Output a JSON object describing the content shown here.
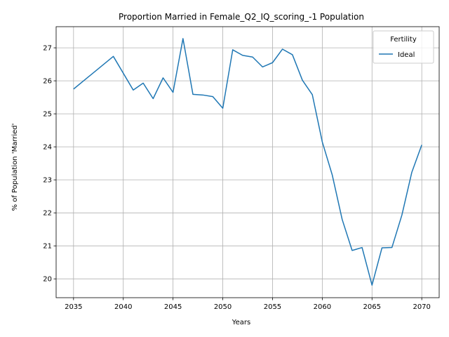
{
  "chart_data": {
    "type": "line",
    "title": "Proportion Married in Female_Q2_IQ_scoring_-1 Population",
    "xlabel": "Years",
    "ylabel": "% of Population 'Married'",
    "xlim": [
      2033.25,
      2071.75
    ],
    "ylim": [
      19.43,
      27.64
    ],
    "xticks": [
      2035,
      2040,
      2045,
      2050,
      2055,
      2060,
      2065,
      2070
    ],
    "yticks": [
      20,
      21,
      22,
      23,
      24,
      25,
      26,
      27
    ],
    "grid": true,
    "legend": {
      "title": "Fertility",
      "placement": "top-right"
    },
    "series": [
      {
        "name": "Ideal",
        "color": "#1f77b4",
        "x": [
          2035,
          2039,
          2041,
          2042,
          2043,
          2044,
          2045,
          2046,
          2047,
          2048,
          2049,
          2050,
          2051,
          2052,
          2053,
          2054,
          2055,
          2056,
          2057,
          2058,
          2059,
          2060,
          2061,
          2062,
          2063,
          2064,
          2065,
          2066,
          2067,
          2068,
          2069,
          2070
        ],
        "values": [
          25.75,
          26.74,
          25.72,
          25.93,
          25.46,
          26.09,
          25.65,
          27.28,
          25.59,
          25.57,
          25.52,
          25.17,
          26.94,
          26.77,
          26.72,
          26.42,
          26.55,
          26.96,
          26.79,
          26.02,
          25.58,
          24.15,
          23.15,
          21.8,
          20.86,
          20.95,
          19.81,
          20.94,
          20.95,
          21.93,
          23.23,
          24.06
        ]
      }
    ]
  }
}
